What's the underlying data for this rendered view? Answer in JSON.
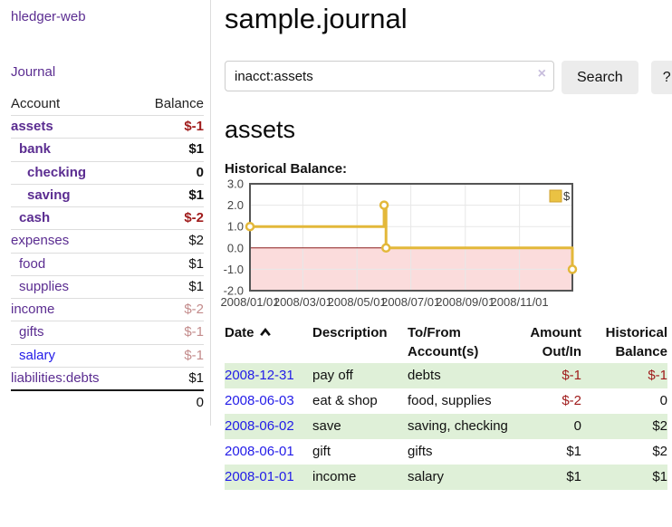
{
  "sidebar": {
    "brand": "hledger-web",
    "journal_link": "Journal",
    "accounts": {
      "col_account": "Account",
      "col_balance": "Balance",
      "rows": [
        {
          "name": "assets",
          "depth": 0,
          "bold": true,
          "amount": "$-1",
          "negative": true
        },
        {
          "name": "bank",
          "depth": 1,
          "bold": true,
          "amount": "$1"
        },
        {
          "name": "checking",
          "depth": 2,
          "bold": true,
          "amount": "0"
        },
        {
          "name": "saving",
          "depth": 2,
          "bold": true,
          "amount": "$1"
        },
        {
          "name": "cash",
          "depth": 1,
          "bold": true,
          "amount": "$-2",
          "negative": true
        },
        {
          "name": "expenses",
          "depth": 0,
          "amount": "$2"
        },
        {
          "name": "food",
          "depth": 1,
          "amount": "$1"
        },
        {
          "name": "supplies",
          "depth": 1,
          "amount": "$1"
        },
        {
          "name": "income",
          "depth": 0,
          "amount": "$-2",
          "negative": true,
          "muted": true
        },
        {
          "name": "gifts",
          "depth": 1,
          "amount": "$-1",
          "negative": true,
          "muted": true
        },
        {
          "name": "salary",
          "depth": 1,
          "amount": "$-1",
          "negative": true,
          "muted": true,
          "blue": true
        },
        {
          "name": "liabilities:debts",
          "depth": 0,
          "amount": "$1"
        }
      ],
      "total": "0"
    }
  },
  "header": {
    "title": "sample.journal",
    "search_value": "inacct:assets",
    "clear_icon": "×",
    "search_button": "Search",
    "help_button": "?"
  },
  "register": {
    "heading": "assets",
    "chart_title": "Historical Balance:",
    "columns": [
      {
        "line1": "Date",
        "line2": "",
        "sort": "ascending"
      },
      {
        "line1": "Description",
        "line2": ""
      },
      {
        "line1": "To/From",
        "line2": "Account(s)"
      },
      {
        "line1": "Amount",
        "line2": "Out/In",
        "align": "right"
      },
      {
        "line1": "Historical",
        "line2": "Balance",
        "align": "right"
      }
    ],
    "rows": [
      {
        "date": "2008-12-31",
        "description": "pay off",
        "accounts": "debts",
        "amount": "$-1",
        "amount_negative": true,
        "balance": "$-1",
        "balance_negative": true
      },
      {
        "date": "2008-06-03",
        "description": "eat & shop",
        "accounts": "food, supplies",
        "amount": "$-2",
        "amount_negative": true,
        "balance": "0"
      },
      {
        "date": "2008-06-02",
        "description": "save",
        "accounts": "saving, checking",
        "amount": "0",
        "balance": "$2"
      },
      {
        "date": "2008-06-01",
        "description": "gift",
        "accounts": "gifts",
        "amount": "$1",
        "balance": "$2"
      },
      {
        "date": "2008-01-01",
        "description": "income",
        "accounts": "salary",
        "amount": "$1",
        "balance": "$1"
      }
    ]
  },
  "chart_data": {
    "type": "line",
    "title": "Historical Balance:",
    "legend": [
      {
        "label": "$",
        "color": "#eac243"
      }
    ],
    "legend_position": "top-right",
    "grid": true,
    "ylim": [
      -2.0,
      3.0
    ],
    "yticks": [
      3.0,
      2.0,
      1.0,
      0.0,
      -1.0,
      -2.0
    ],
    "xticks": [
      {
        "label": "2008/01/01",
        "pos": 0.0
      },
      {
        "label": "2008/03/01",
        "pos": 0.164
      },
      {
        "label": "2008/05/01",
        "pos": 0.332
      },
      {
        "label": "2008/07/01",
        "pos": 0.499
      },
      {
        "label": "2008/09/01",
        "pos": 0.668
      },
      {
        "label": "2008/11/01",
        "pos": 0.836
      }
    ],
    "series": [
      {
        "name": "$",
        "step": true,
        "points": [
          {
            "date": "2008/01/01",
            "pos": 0.0,
            "value": 1
          },
          {
            "date": "2008/06/01",
            "pos": 0.416,
            "value": 2
          },
          {
            "date": "2008/06/03",
            "pos": 0.422,
            "value": 0
          },
          {
            "date": "2008/12/31",
            "pos": 1.0,
            "value": -1
          }
        ]
      }
    ],
    "colors": {
      "line": "#e3b83a",
      "marker_fill": "#ffffff",
      "legend_swatch_border": "#cfa02e",
      "negative_region": "#fbdcdc",
      "zero_line": "#8b1a1a",
      "grid": "#e7e7e7",
      "border": "#555555",
      "tick_text": "#444444"
    }
  }
}
